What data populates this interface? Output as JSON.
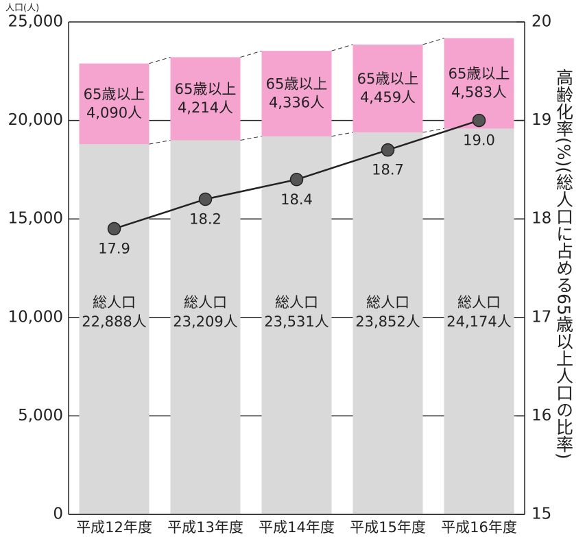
{
  "chart_data": {
    "type": "bar",
    "y_label": "人口(人)",
    "y2_label": "高齢化率(%)(総人口に占める65歳以上人口の比率)",
    "categories": [
      "平成12年度",
      "平成13年度",
      "平成14年度",
      "平成15年度",
      "平成16年度"
    ],
    "series": [
      {
        "name": "総人口",
        "color": "#d9d9d9",
        "values": [
          22888,
          23209,
          23531,
          23852,
          24174
        ],
        "value_labels": [
          "22,888人",
          "23,209人",
          "23,531人",
          "23,852人",
          "24,174人"
        ]
      },
      {
        "name": "65歳以上",
        "color": "#f5a3cf",
        "values": [
          4090,
          4214,
          4336,
          4459,
          4583
        ],
        "value_labels": [
          "4,090人",
          "4,214人",
          "4,336人",
          "4,459人",
          "4,583人"
        ]
      },
      {
        "type": "line",
        "axis": "y2",
        "color": "#222222",
        "values": [
          17.9,
          18.2,
          18.4,
          18.7,
          19.0
        ],
        "value_labels": [
          "17.9",
          "18.2",
          "18.4",
          "18.7",
          "19.0"
        ]
      }
    ],
    "ylim": [
      0,
      25000
    ],
    "yticks": [
      0,
      {
        "value": 5000,
        "label": "5,000"
      },
      {
        "value": 10000,
        "label": "10,000"
      },
      {
        "value": 15000,
        "label": "15,000"
      },
      {
        "value": 20000,
        "label": "20,000"
      },
      {
        "value": 25000,
        "label": "25,000"
      }
    ],
    "y2lim": [
      15,
      20
    ],
    "y2ticks": [
      15,
      16,
      17,
      18,
      19,
      20
    ],
    "grid": true
  }
}
